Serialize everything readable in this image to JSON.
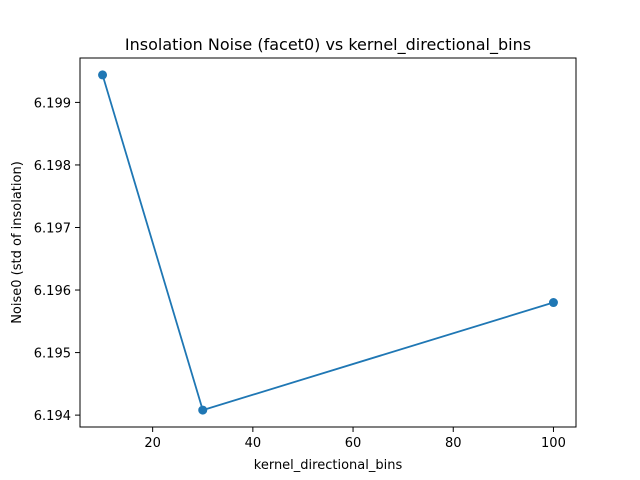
{
  "chart_data": {
    "type": "line",
    "title": "Insolation Noise (facet0) vs kernel_directional_bins",
    "xlabel": "kernel_directional_bins",
    "ylabel": "Noise0 (std of insolation)",
    "x": [
      10,
      30,
      100
    ],
    "series": [
      {
        "values": [
          6.19944,
          6.19408,
          6.1958
        ],
        "color": "#1f77b4",
        "marker": "circle"
      }
    ],
    "xlim": [
      5.5,
      104.5
    ],
    "ylim": [
      6.19381,
      6.19971
    ],
    "xticks": [
      20,
      40,
      60,
      80,
      100
    ],
    "yticks": [
      6.194,
      6.195,
      6.196,
      6.197,
      6.198,
      6.199
    ],
    "xtick_labels": [
      "20",
      "40",
      "60",
      "80",
      "100"
    ],
    "ytick_labels": [
      "6.194",
      "6.195",
      "6.196",
      "6.197",
      "6.198",
      "6.199"
    ],
    "grid": false,
    "legend": "none"
  }
}
